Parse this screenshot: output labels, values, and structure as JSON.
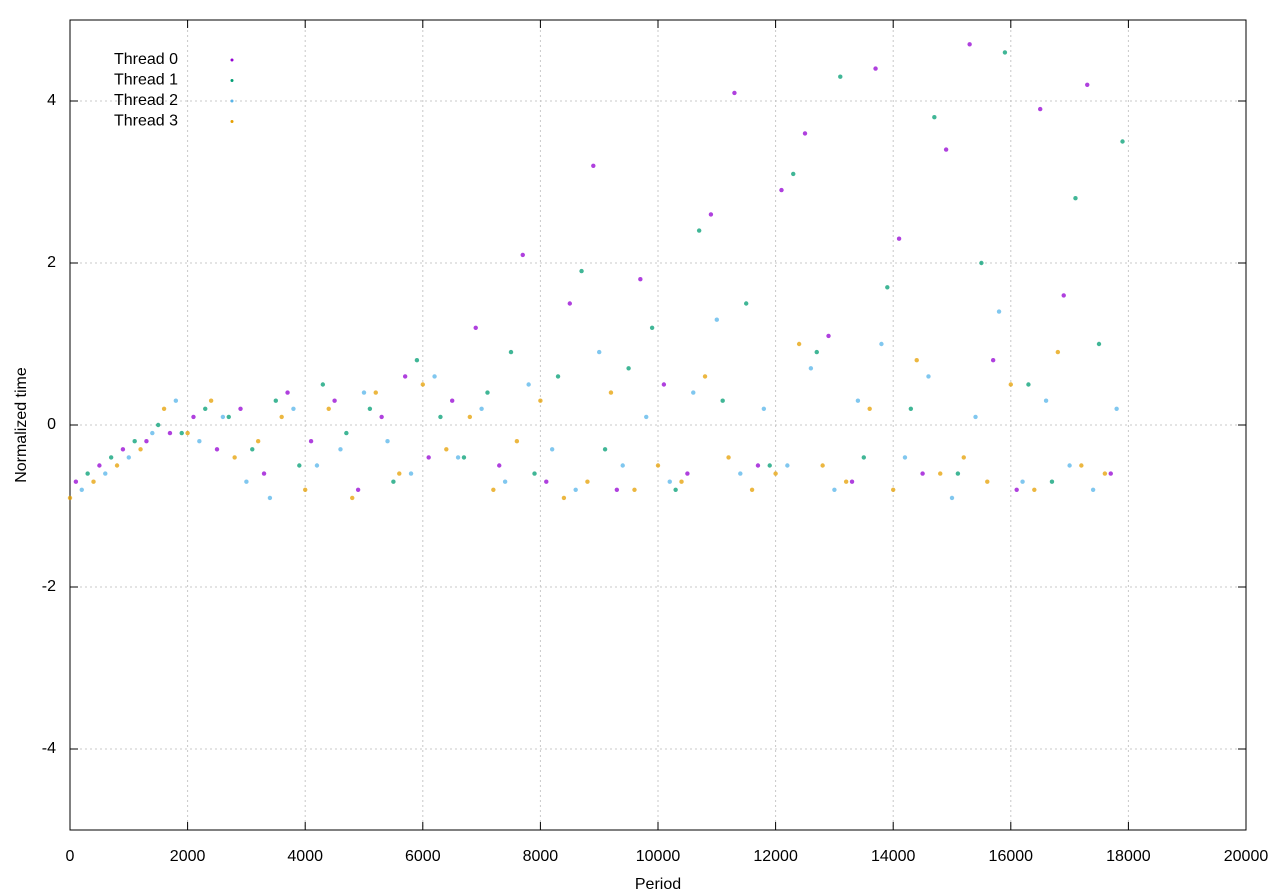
{
  "chart_data": {
    "type": "scatter",
    "xlabel": "Period",
    "ylabel": "Normalized time",
    "xlim": [
      0,
      20000
    ],
    "ylim": [
      -5,
      5
    ],
    "xticks": [
      0,
      2000,
      4000,
      6000,
      8000,
      10000,
      12000,
      14000,
      16000,
      18000,
      20000
    ],
    "yticks": [
      -4,
      -2,
      0,
      2,
      4
    ],
    "grid": true,
    "legend": "top-left",
    "series": [
      {
        "name": "Thread 0",
        "color": "#9400d3",
        "x": [
          100,
          500,
          900,
          1300,
          1700,
          2100,
          2500,
          2900,
          3300,
          3700,
          4100,
          4500,
          4900,
          5300,
          5700,
          6100,
          6500,
          6900,
          7300,
          7700,
          8100,
          8500,
          8900,
          9300,
          9700,
          10100,
          10500,
          10900,
          11300,
          11700,
          12100,
          12500,
          12900,
          13300,
          13700,
          14100,
          14500,
          14900,
          15300,
          15700,
          16100,
          16500,
          16900,
          17300,
          17700
        ],
        "values": [
          -0.7,
          -0.5,
          -0.3,
          -0.2,
          -0.1,
          0.1,
          -0.3,
          0.2,
          -0.6,
          0.4,
          -0.2,
          0.3,
          -0.8,
          0.1,
          0.6,
          -0.4,
          0.3,
          1.2,
          -0.5,
          2.1,
          -0.7,
          1.5,
          3.2,
          -0.8,
          1.8,
          0.5,
          -0.6,
          2.6,
          4.1,
          -0.5,
          2.9,
          3.6,
          1.1,
          -0.7,
          4.4,
          2.3,
          -0.6,
          3.4,
          4.7,
          0.8,
          -0.8,
          3.9,
          1.6,
          4.2,
          -0.6
        ]
      },
      {
        "name": "Thread 1",
        "color": "#009e73",
        "x": [
          300,
          700,
          1100,
          1500,
          1900,
          2300,
          2700,
          3100,
          3500,
          3900,
          4300,
          4700,
          5100,
          5500,
          5900,
          6300,
          6700,
          7100,
          7500,
          7900,
          8300,
          8700,
          9100,
          9500,
          9900,
          10300,
          10700,
          11100,
          11500,
          11900,
          12300,
          12700,
          13100,
          13500,
          13900,
          14300,
          14700,
          15100,
          15500,
          15900,
          16300,
          16700,
          17100,
          17500,
          17900
        ],
        "values": [
          -0.6,
          -0.4,
          -0.2,
          0,
          -0.1,
          0.2,
          0.1,
          -0.3,
          0.3,
          -0.5,
          0.5,
          -0.1,
          0.2,
          -0.7,
          0.8,
          0.1,
          -0.4,
          0.4,
          0.9,
          -0.6,
          0.6,
          1.9,
          -0.3,
          0.7,
          1.2,
          -0.8,
          2.4,
          0.3,
          1.5,
          -0.5,
          3.1,
          0.9,
          4.3,
          -0.4,
          1.7,
          0.2,
          3.8,
          -0.6,
          2.0,
          4.6,
          0.5,
          -0.7,
          2.8,
          1.0,
          3.5
        ]
      },
      {
        "name": "Thread 2",
        "color": "#56b4e9",
        "x": [
          200,
          600,
          1000,
          1400,
          1800,
          2200,
          2600,
          3000,
          3400,
          3800,
          4200,
          4600,
          5000,
          5400,
          5800,
          6200,
          6600,
          7000,
          7400,
          7800,
          8200,
          8600,
          9000,
          9400,
          9800,
          10200,
          10600,
          11000,
          11400,
          11800,
          12200,
          12600,
          13000,
          13400,
          13800,
          14200,
          14600,
          15000,
          15400,
          15800,
          16200,
          16600,
          17000,
          17400,
          17800
        ],
        "values": [
          -0.8,
          -0.6,
          -0.4,
          -0.1,
          0.3,
          -0.2,
          0.1,
          -0.7,
          -0.9,
          0.2,
          -0.5,
          -0.3,
          0.4,
          -0.2,
          -0.6,
          0.6,
          -0.4,
          0.2,
          -0.7,
          0.5,
          -0.3,
          -0.8,
          0.9,
          -0.5,
          0.1,
          -0.7,
          0.4,
          1.3,
          -0.6,
          0.2,
          -0.5,
          0.7,
          -0.8,
          0.3,
          1.0,
          -0.4,
          0.6,
          -0.9,
          0.1,
          1.4,
          -0.7,
          0.3,
          -0.5,
          -0.8,
          0.2
        ]
      },
      {
        "name": "Thread 3",
        "color": "#e69f00",
        "x": [
          0,
          400,
          800,
          1200,
          1600,
          2000,
          2400,
          2800,
          3200,
          3600,
          4000,
          4400,
          4800,
          5200,
          5600,
          6000,
          6400,
          6800,
          7200,
          7600,
          8000,
          8400,
          8800,
          9200,
          9600,
          10000,
          10400,
          10800,
          11200,
          11600,
          12000,
          12400,
          12800,
          13200,
          13600,
          14000,
          14400,
          14800,
          15200,
          15600,
          16000,
          16400,
          16800,
          17200,
          17600
        ],
        "values": [
          -0.9,
          -0.7,
          -0.5,
          -0.3,
          0.2,
          -0.1,
          0.3,
          -0.4,
          -0.2,
          0.1,
          -0.8,
          0.2,
          -0.9,
          0.4,
          -0.6,
          0.5,
          -0.3,
          0.1,
          -0.8,
          -0.2,
          0.3,
          -0.9,
          -0.7,
          0.4,
          -0.8,
          -0.5,
          -0.7,
          0.6,
          -0.4,
          -0.8,
          -0.6,
          1.0,
          -0.5,
          -0.7,
          0.2,
          -0.8,
          0.8,
          -0.6,
          -0.4,
          -0.7,
          0.5,
          -0.8,
          0.9,
          -0.5,
          -0.6
        ]
      }
    ]
  }
}
